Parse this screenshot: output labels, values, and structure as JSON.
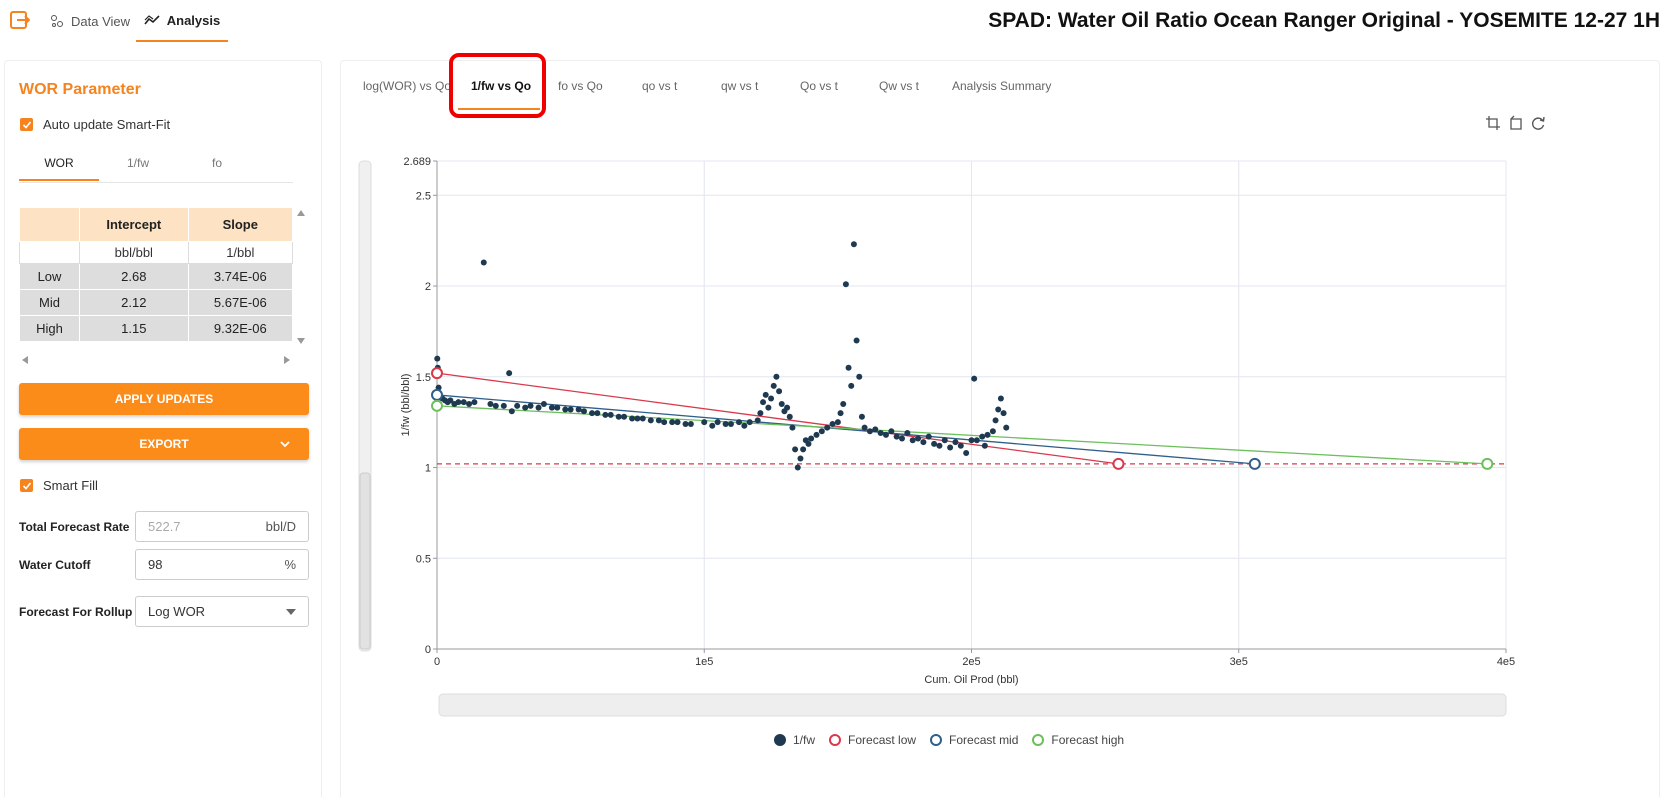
{
  "app": {
    "nav_tabs": [
      {
        "label": "Data View",
        "icon": "data-view-icon"
      },
      {
        "label": "Analysis",
        "icon": "analysis-icon"
      }
    ],
    "title": "SPAD: Water Oil Ratio Ocean Ranger Original - YOSEMITE 12-27 1H"
  },
  "sidebar": {
    "title": "WOR Parameter",
    "auto_update_label": "Auto update Smart-Fit",
    "param_tabs": [
      "WOR",
      "1/fw",
      "fo"
    ],
    "table": {
      "headers": [
        "",
        "Intercept",
        "Slope"
      ],
      "units": [
        "",
        "bbl/bbl",
        "1/bbl"
      ],
      "rows": [
        {
          "label": "Low",
          "intercept": "2.68",
          "slope": "3.74E-06"
        },
        {
          "label": "Mid",
          "intercept": "2.12",
          "slope": "5.67E-06"
        },
        {
          "label": "High",
          "intercept": "1.15",
          "slope": "9.32E-06"
        }
      ]
    },
    "apply_label": "APPLY UPDATES",
    "export_label": "EXPORT",
    "smart_fill_label": "Smart Fill",
    "total_rate": {
      "label": "Total Forecast Rate",
      "placeholder": "522.7",
      "unit": "bbl/D"
    },
    "water_cutoff": {
      "label": "Water Cutoff",
      "value": "98",
      "unit": "%"
    },
    "rollup": {
      "label": "Forecast For Rollup",
      "value": "Log WOR"
    }
  },
  "chart_tabs": [
    "log(WOR) vs Qo",
    "1/fw vs Qo",
    "fo vs Qo",
    "qo vs t",
    "qw vs t",
    "Qo vs t",
    "Qw vs t",
    "Analysis Summary"
  ],
  "colors": {
    "accent": "#f5841f",
    "data_points": "#1f3a50",
    "forecast_low": "#d9394b",
    "forecast_mid": "#2f5f8a",
    "forecast_high": "#6cc05c",
    "cutoff_line": "#d9394b"
  },
  "chart_data": {
    "type": "scatter",
    "xlabel": "Cum. Oil Prod (bbl)",
    "ylabel": "1/fw (bbl/bbl)",
    "xlim": [
      0,
      400000
    ],
    "ylim": [
      0,
      2.689
    ],
    "x_ticks": [
      {
        "v": 0,
        "l": "0"
      },
      {
        "v": 100000,
        "l": "1e5"
      },
      {
        "v": 200000,
        "l": "2e5"
      },
      {
        "v": 300000,
        "l": "3e5"
      },
      {
        "v": 400000,
        "l": "4e5"
      }
    ],
    "y_ticks": [
      {
        "v": 0,
        "l": "0"
      },
      {
        "v": 0.5,
        "l": "0.5"
      },
      {
        "v": 1,
        "l": "1"
      },
      {
        "v": 1.5,
        "l": "1.5"
      },
      {
        "v": 2,
        "l": "2"
      },
      {
        "v": 2.5,
        "l": "2.5"
      },
      {
        "v": 2.689,
        "l": "2.689"
      }
    ],
    "cutoff_y": 1.02,
    "series": [
      {
        "name": "1/fw",
        "type": "scatter",
        "points": [
          [
            100,
            1.6
          ],
          [
            300,
            1.55
          ],
          [
            600,
            1.44
          ],
          [
            1000,
            1.4
          ],
          [
            2000,
            1.38
          ],
          [
            3000,
            1.37
          ],
          [
            4000,
            1.36
          ],
          [
            5000,
            1.37
          ],
          [
            6500,
            1.35
          ],
          [
            8000,
            1.36
          ],
          [
            10000,
            1.36
          ],
          [
            12000,
            1.35
          ],
          [
            14000,
            1.36
          ],
          [
            17500,
            2.13
          ],
          [
            20000,
            1.35
          ],
          [
            22000,
            1.34
          ],
          [
            25000,
            1.34
          ],
          [
            27000,
            1.52
          ],
          [
            28000,
            1.31
          ],
          [
            30000,
            1.34
          ],
          [
            33000,
            1.33
          ],
          [
            35000,
            1.34
          ],
          [
            38000,
            1.33
          ],
          [
            40000,
            1.35
          ],
          [
            43000,
            1.33
          ],
          [
            45000,
            1.33
          ],
          [
            48000,
            1.32
          ],
          [
            50000,
            1.32
          ],
          [
            53000,
            1.32
          ],
          [
            55000,
            1.31
          ],
          [
            58000,
            1.3
          ],
          [
            60000,
            1.3
          ],
          [
            63000,
            1.29
          ],
          [
            65000,
            1.29
          ],
          [
            68000,
            1.28
          ],
          [
            70000,
            1.28
          ],
          [
            73000,
            1.27
          ],
          [
            75000,
            1.27
          ],
          [
            77000,
            1.27
          ],
          [
            80000,
            1.26
          ],
          [
            83000,
            1.26
          ],
          [
            85000,
            1.25
          ],
          [
            88000,
            1.25
          ],
          [
            90000,
            1.25
          ],
          [
            93000,
            1.24
          ],
          [
            95000,
            1.24
          ],
          [
            100000,
            1.25
          ],
          [
            103000,
            1.23
          ],
          [
            105000,
            1.25
          ],
          [
            108000,
            1.24
          ],
          [
            110000,
            1.24
          ],
          [
            113000,
            1.25
          ],
          [
            115000,
            1.23
          ],
          [
            117000,
            1.25
          ],
          [
            120000,
            1.26
          ],
          [
            121000,
            1.3
          ],
          [
            122000,
            1.36
          ],
          [
            123000,
            1.4
          ],
          [
            124000,
            1.33
          ],
          [
            125000,
            1.38
          ],
          [
            126000,
            1.45
          ],
          [
            127000,
            1.5
          ],
          [
            128000,
            1.42
          ],
          [
            129000,
            1.35
          ],
          [
            130000,
            1.31
          ],
          [
            131000,
            1.33
          ],
          [
            132000,
            1.28
          ],
          [
            133000,
            1.22
          ],
          [
            134000,
            1.1
          ],
          [
            135000,
            1.0
          ],
          [
            136000,
            1.05
          ],
          [
            137000,
            1.1
          ],
          [
            138000,
            1.15
          ],
          [
            139000,
            1.13
          ],
          [
            140000,
            1.16
          ],
          [
            142000,
            1.18
          ],
          [
            144000,
            1.2
          ],
          [
            146000,
            1.22
          ],
          [
            148000,
            1.24
          ],
          [
            150000,
            1.25
          ],
          [
            151000,
            1.3
          ],
          [
            152000,
            1.35
          ],
          [
            153000,
            2.01
          ],
          [
            154000,
            1.55
          ],
          [
            155000,
            1.45
          ],
          [
            156000,
            2.23
          ],
          [
            157000,
            1.7
          ],
          [
            158000,
            1.5
          ],
          [
            159000,
            1.28
          ],
          [
            160000,
            1.22
          ],
          [
            162000,
            1.2
          ],
          [
            164000,
            1.21
          ],
          [
            166000,
            1.19
          ],
          [
            168000,
            1.18
          ],
          [
            170000,
            1.2
          ],
          [
            172000,
            1.17
          ],
          [
            174000,
            1.16
          ],
          [
            176000,
            1.19
          ],
          [
            178000,
            1.15
          ],
          [
            180000,
            1.16
          ],
          [
            182000,
            1.14
          ],
          [
            184000,
            1.17
          ],
          [
            186000,
            1.13
          ],
          [
            188000,
            1.12
          ],
          [
            190000,
            1.15
          ],
          [
            192000,
            1.11
          ],
          [
            194000,
            1.14
          ],
          [
            196000,
            1.12
          ],
          [
            198000,
            1.08
          ],
          [
            200000,
            1.15
          ],
          [
            201000,
            1.49
          ],
          [
            202000,
            1.15
          ],
          [
            204000,
            1.17
          ],
          [
            205000,
            1.12
          ],
          [
            206000,
            1.18
          ],
          [
            208000,
            1.2
          ],
          [
            209000,
            1.26
          ],
          [
            210000,
            1.32
          ],
          [
            211000,
            1.38
          ],
          [
            212000,
            1.3
          ],
          [
            213000,
            1.22
          ]
        ]
      },
      {
        "name": "Forecast low",
        "type": "line",
        "points": [
          [
            0,
            1.52
          ],
          [
            255000,
            1.02
          ]
        ]
      },
      {
        "name": "Forecast mid",
        "type": "line",
        "points": [
          [
            0,
            1.4
          ],
          [
            306000,
            1.02
          ]
        ]
      },
      {
        "name": "Forecast high",
        "type": "line",
        "points": [
          [
            0,
            1.34
          ],
          [
            393000,
            1.02
          ]
        ]
      }
    ]
  }
}
